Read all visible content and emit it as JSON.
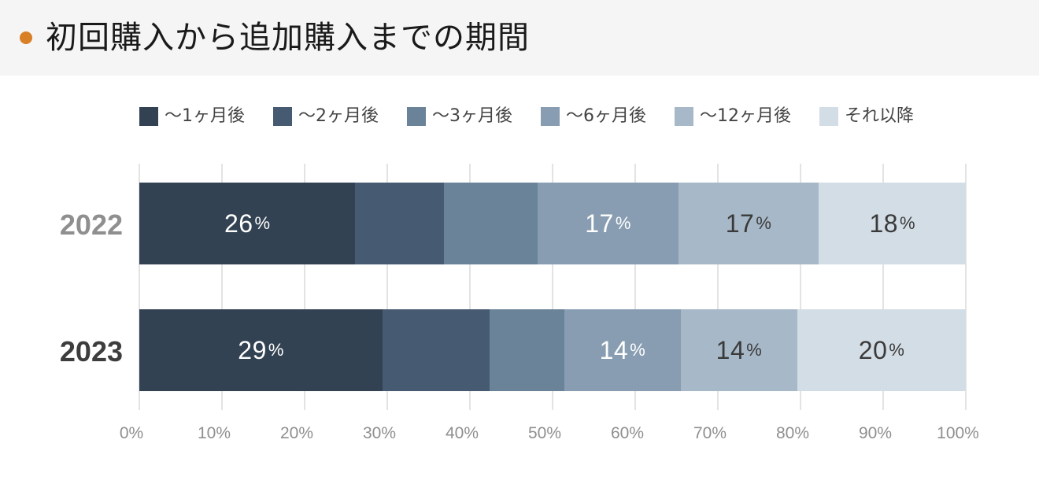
{
  "header": {
    "title": "初回購入から追加購入までの期間",
    "accent_color": "#d97f25"
  },
  "legend": [
    {
      "label": "〜1ヶ月後",
      "color": "#334252"
    },
    {
      "label": "〜2ヶ月後",
      "color": "#465b71"
    },
    {
      "label": "〜3ヶ月後",
      "color": "#6a8399"
    },
    {
      "label": "〜6ヶ月後",
      "color": "#889db2"
    },
    {
      "label": "〜12ヶ月後",
      "color": "#a7b8c8"
    },
    {
      "label": "それ以降",
      "color": "#d3dde5"
    }
  ],
  "categories": [
    {
      "label": "2022",
      "color": "#8f8f8f"
    },
    {
      "label": "2023",
      "color": "#3d3d3d"
    }
  ],
  "ticks": [
    "0%",
    "10%",
    "20%",
    "30%",
    "40%",
    "50%",
    "60%",
    "70%",
    "80%",
    "90%",
    "100%"
  ],
  "chart_data": {
    "type": "bar",
    "orientation": "horizontal",
    "stacked": true,
    "normalized": true,
    "title": "初回購入から追加購入までの期間",
    "xlabel": "",
    "ylabel": "",
    "xlim": [
      0,
      100
    ],
    "x_ticks": [
      "0%",
      "10%",
      "20%",
      "30%",
      "40%",
      "50%",
      "60%",
      "70%",
      "80%",
      "90%",
      "100%"
    ],
    "grid": "vertical",
    "legend_position": "top",
    "categories": [
      "2022",
      "2023"
    ],
    "series": [
      {
        "name": "〜1ヶ月後",
        "color": "#334252",
        "values": [
          26,
          29
        ],
        "labels": [
          "26%",
          "29%"
        ]
      },
      {
        "name": "〜2ヶ月後",
        "color": "#465b71",
        "values": [
          11,
          13
        ],
        "labels": [
          null,
          null
        ]
      },
      {
        "name": "〜3ヶ月後",
        "color": "#6a8399",
        "values": [
          11,
          9
        ],
        "labels": [
          null,
          null
        ]
      },
      {
        "name": "〜6ヶ月後",
        "color": "#889db2",
        "values": [
          17,
          14
        ],
        "labels": [
          "17%",
          "14%"
        ]
      },
      {
        "name": "〜12ヶ月後",
        "color": "#a7b8c8",
        "values": [
          17,
          14
        ],
        "labels": [
          "17%",
          "14%"
        ]
      },
      {
        "name": "それ以降",
        "color": "#d3dde5",
        "values": [
          18,
          20
        ],
        "labels": [
          "18%",
          "20%"
        ]
      }
    ]
  },
  "bars": [
    {
      "category": "2022",
      "segments": [
        {
          "width": 26.1,
          "color": "#334252",
          "value": "26",
          "unit": "%",
          "text": "light"
        },
        {
          "width": 10.8,
          "color": "#465b71",
          "value": "",
          "unit": "",
          "text": "light"
        },
        {
          "width": 11.3,
          "color": "#6a8399",
          "value": "",
          "unit": "",
          "text": "light"
        },
        {
          "width": 17.0,
          "color": "#889db2",
          "value": "17",
          "unit": "%",
          "text": "light"
        },
        {
          "width": 17.0,
          "color": "#a7b8c8",
          "value": "17",
          "unit": "%",
          "text": "dark"
        },
        {
          "width": 17.8,
          "color": "#d3dde5",
          "value": "18",
          "unit": "%",
          "text": "dark"
        }
      ]
    },
    {
      "category": "2023",
      "segments": [
        {
          "width": 29.4,
          "color": "#334252",
          "value": "29",
          "unit": "%",
          "text": "light"
        },
        {
          "width": 13.0,
          "color": "#465b71",
          "value": "",
          "unit": "",
          "text": "light"
        },
        {
          "width": 9.0,
          "color": "#6a8399",
          "value": "",
          "unit": "",
          "text": "light"
        },
        {
          "width": 14.1,
          "color": "#889db2",
          "value": "14",
          "unit": "%",
          "text": "light"
        },
        {
          "width": 14.1,
          "color": "#a7b8c8",
          "value": "14",
          "unit": "%",
          "text": "dark"
        },
        {
          "width": 20.4,
          "color": "#d3dde5",
          "value": "20",
          "unit": "%",
          "text": "dark"
        }
      ]
    }
  ]
}
